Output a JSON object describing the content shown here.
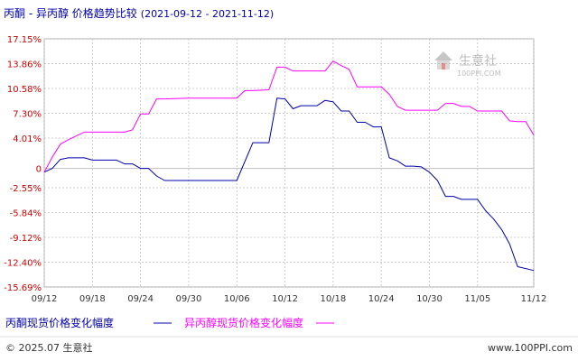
{
  "title": "丙酮 - 异丙醇 价格趋势比较",
  "date_range": "(2021-09-12 - 2021-11-12)",
  "watermark": {
    "cn": "生意社",
    "url": "100PPI.COM"
  },
  "footer": {
    "copyright": "© 2025.07 生意社",
    "site": "www.100PPI.com"
  },
  "colors": {
    "series1": "#0000aa",
    "series2": "#ff00ff",
    "title": "#0000aa",
    "ylabels": "#cc0000",
    "grid": "#c0c0c0",
    "axis": "#555555"
  },
  "chart_data": {
    "type": "line",
    "ylabel_unit": "%",
    "ylim": [
      -15.69,
      17.15
    ],
    "yticks": [
      "17.15%",
      "13.86%",
      "10.58%",
      "7.30%",
      "4.01%",
      "0",
      "-2.55%",
      "-5.84%",
      "-9.12%",
      "-12.40%",
      "-15.69%"
    ],
    "ytick_values": [
      17.15,
      13.86,
      10.58,
      7.3,
      4.01,
      0,
      -2.55,
      -5.84,
      -9.12,
      -12.4,
      -15.69
    ],
    "x_start": "2021-09-12",
    "x_end": "2021-11-12",
    "xticks": [
      "09/12",
      "09/18",
      "09/24",
      "09/30",
      "10/06",
      "10/12",
      "10/18",
      "10/24",
      "10/30",
      "11/05",
      "11/12"
    ],
    "grid": true,
    "legend_position": "bottom-left",
    "series": [
      {
        "name": "丙酮现货价格变化幅度",
        "color": "#0000aa",
        "points": [
          [
            "2021-09-12",
            -0.5
          ],
          [
            "2021-09-13",
            0.0
          ],
          [
            "2021-09-14",
            1.2
          ],
          [
            "2021-09-15",
            1.4
          ],
          [
            "2021-09-17",
            1.4
          ],
          [
            "2021-09-18",
            1.1
          ],
          [
            "2021-09-21",
            1.1
          ],
          [
            "2021-09-22",
            0.6
          ],
          [
            "2021-09-23",
            0.6
          ],
          [
            "2021-09-24",
            0.0
          ],
          [
            "2021-09-25",
            0.0
          ],
          [
            "2021-09-26",
            -1.0
          ],
          [
            "2021-09-27",
            -1.6
          ],
          [
            "2021-09-30",
            -1.6
          ],
          [
            "2021-10-05",
            -1.6
          ],
          [
            "2021-10-06",
            -1.6
          ],
          [
            "2021-10-08",
            3.4
          ],
          [
            "2021-10-09",
            3.4
          ],
          [
            "2021-10-10",
            3.4
          ],
          [
            "2021-10-11",
            9.3
          ],
          [
            "2021-10-12",
            9.2
          ],
          [
            "2021-10-13",
            7.9
          ],
          [
            "2021-10-14",
            8.3
          ],
          [
            "2021-10-15",
            8.3
          ],
          [
            "2021-10-16",
            8.3
          ],
          [
            "2021-10-17",
            9.0
          ],
          [
            "2021-10-18",
            8.8
          ],
          [
            "2021-10-19",
            7.6
          ],
          [
            "2021-10-20",
            7.6
          ],
          [
            "2021-10-21",
            6.1
          ],
          [
            "2021-10-22",
            6.1
          ],
          [
            "2021-10-23",
            5.5
          ],
          [
            "2021-10-24",
            5.5
          ],
          [
            "2021-10-25",
            1.4
          ],
          [
            "2021-10-26",
            1.0
          ],
          [
            "2021-10-27",
            0.3
          ],
          [
            "2021-10-28",
            0.3
          ],
          [
            "2021-10-29",
            0.2
          ],
          [
            "2021-10-30",
            -0.5
          ],
          [
            "2021-10-31",
            -1.6
          ],
          [
            "2021-11-01",
            -3.7
          ],
          [
            "2021-11-02",
            -3.7
          ],
          [
            "2021-11-03",
            -4.1
          ],
          [
            "2021-11-04",
            -4.1
          ],
          [
            "2021-11-05",
            -4.1
          ],
          [
            "2021-11-06",
            -5.6
          ],
          [
            "2021-11-07",
            -6.7
          ],
          [
            "2021-11-08",
            -8.1
          ],
          [
            "2021-11-09",
            -10.0
          ],
          [
            "2021-11-10",
            -13.0
          ],
          [
            "2021-11-12",
            -13.5
          ]
        ]
      },
      {
        "name": "异丙醇现货价格变化幅度",
        "color": "#ff00ff",
        "points": [
          [
            "2021-09-12",
            -0.5
          ],
          [
            "2021-09-13",
            1.5
          ],
          [
            "2021-09-14",
            3.2
          ],
          [
            "2021-09-15",
            3.8
          ],
          [
            "2021-09-16",
            4.3
          ],
          [
            "2021-09-17",
            4.8
          ],
          [
            "2021-09-18",
            4.8
          ],
          [
            "2021-09-21",
            4.8
          ],
          [
            "2021-09-22",
            4.8
          ],
          [
            "2021-09-23",
            5.1
          ],
          [
            "2021-09-24",
            7.2
          ],
          [
            "2021-09-25",
            7.2
          ],
          [
            "2021-09-26",
            9.2
          ],
          [
            "2021-09-27",
            9.2
          ],
          [
            "2021-09-30",
            9.3
          ],
          [
            "2021-10-06",
            9.3
          ],
          [
            "2021-10-07",
            10.3
          ],
          [
            "2021-10-08",
            10.3
          ],
          [
            "2021-10-10",
            10.4
          ],
          [
            "2021-10-11",
            13.4
          ],
          [
            "2021-10-12",
            13.4
          ],
          [
            "2021-10-13",
            12.9
          ],
          [
            "2021-10-14",
            12.9
          ],
          [
            "2021-10-16",
            12.9
          ],
          [
            "2021-10-17",
            12.9
          ],
          [
            "2021-10-18",
            14.2
          ],
          [
            "2021-10-19",
            13.6
          ],
          [
            "2021-10-20",
            13.1
          ],
          [
            "2021-10-21",
            10.8
          ],
          [
            "2021-10-22",
            10.8
          ],
          [
            "2021-10-23",
            10.8
          ],
          [
            "2021-10-24",
            10.8
          ],
          [
            "2021-10-25",
            9.8
          ],
          [
            "2021-10-26",
            8.2
          ],
          [
            "2021-10-27",
            7.7
          ],
          [
            "2021-10-28",
            7.7
          ],
          [
            "2021-10-30",
            7.7
          ],
          [
            "2021-10-31",
            7.7
          ],
          [
            "2021-11-01",
            8.6
          ],
          [
            "2021-11-02",
            8.6
          ],
          [
            "2021-11-03",
            8.2
          ],
          [
            "2021-11-04",
            8.2
          ],
          [
            "2021-11-05",
            7.6
          ],
          [
            "2021-11-06",
            7.6
          ],
          [
            "2021-11-07",
            7.6
          ],
          [
            "2021-11-08",
            7.6
          ],
          [
            "2021-11-09",
            6.3
          ],
          [
            "2021-11-10",
            6.2
          ],
          [
            "2021-11-11",
            6.2
          ],
          [
            "2021-11-12",
            4.4
          ]
        ]
      }
    ]
  }
}
